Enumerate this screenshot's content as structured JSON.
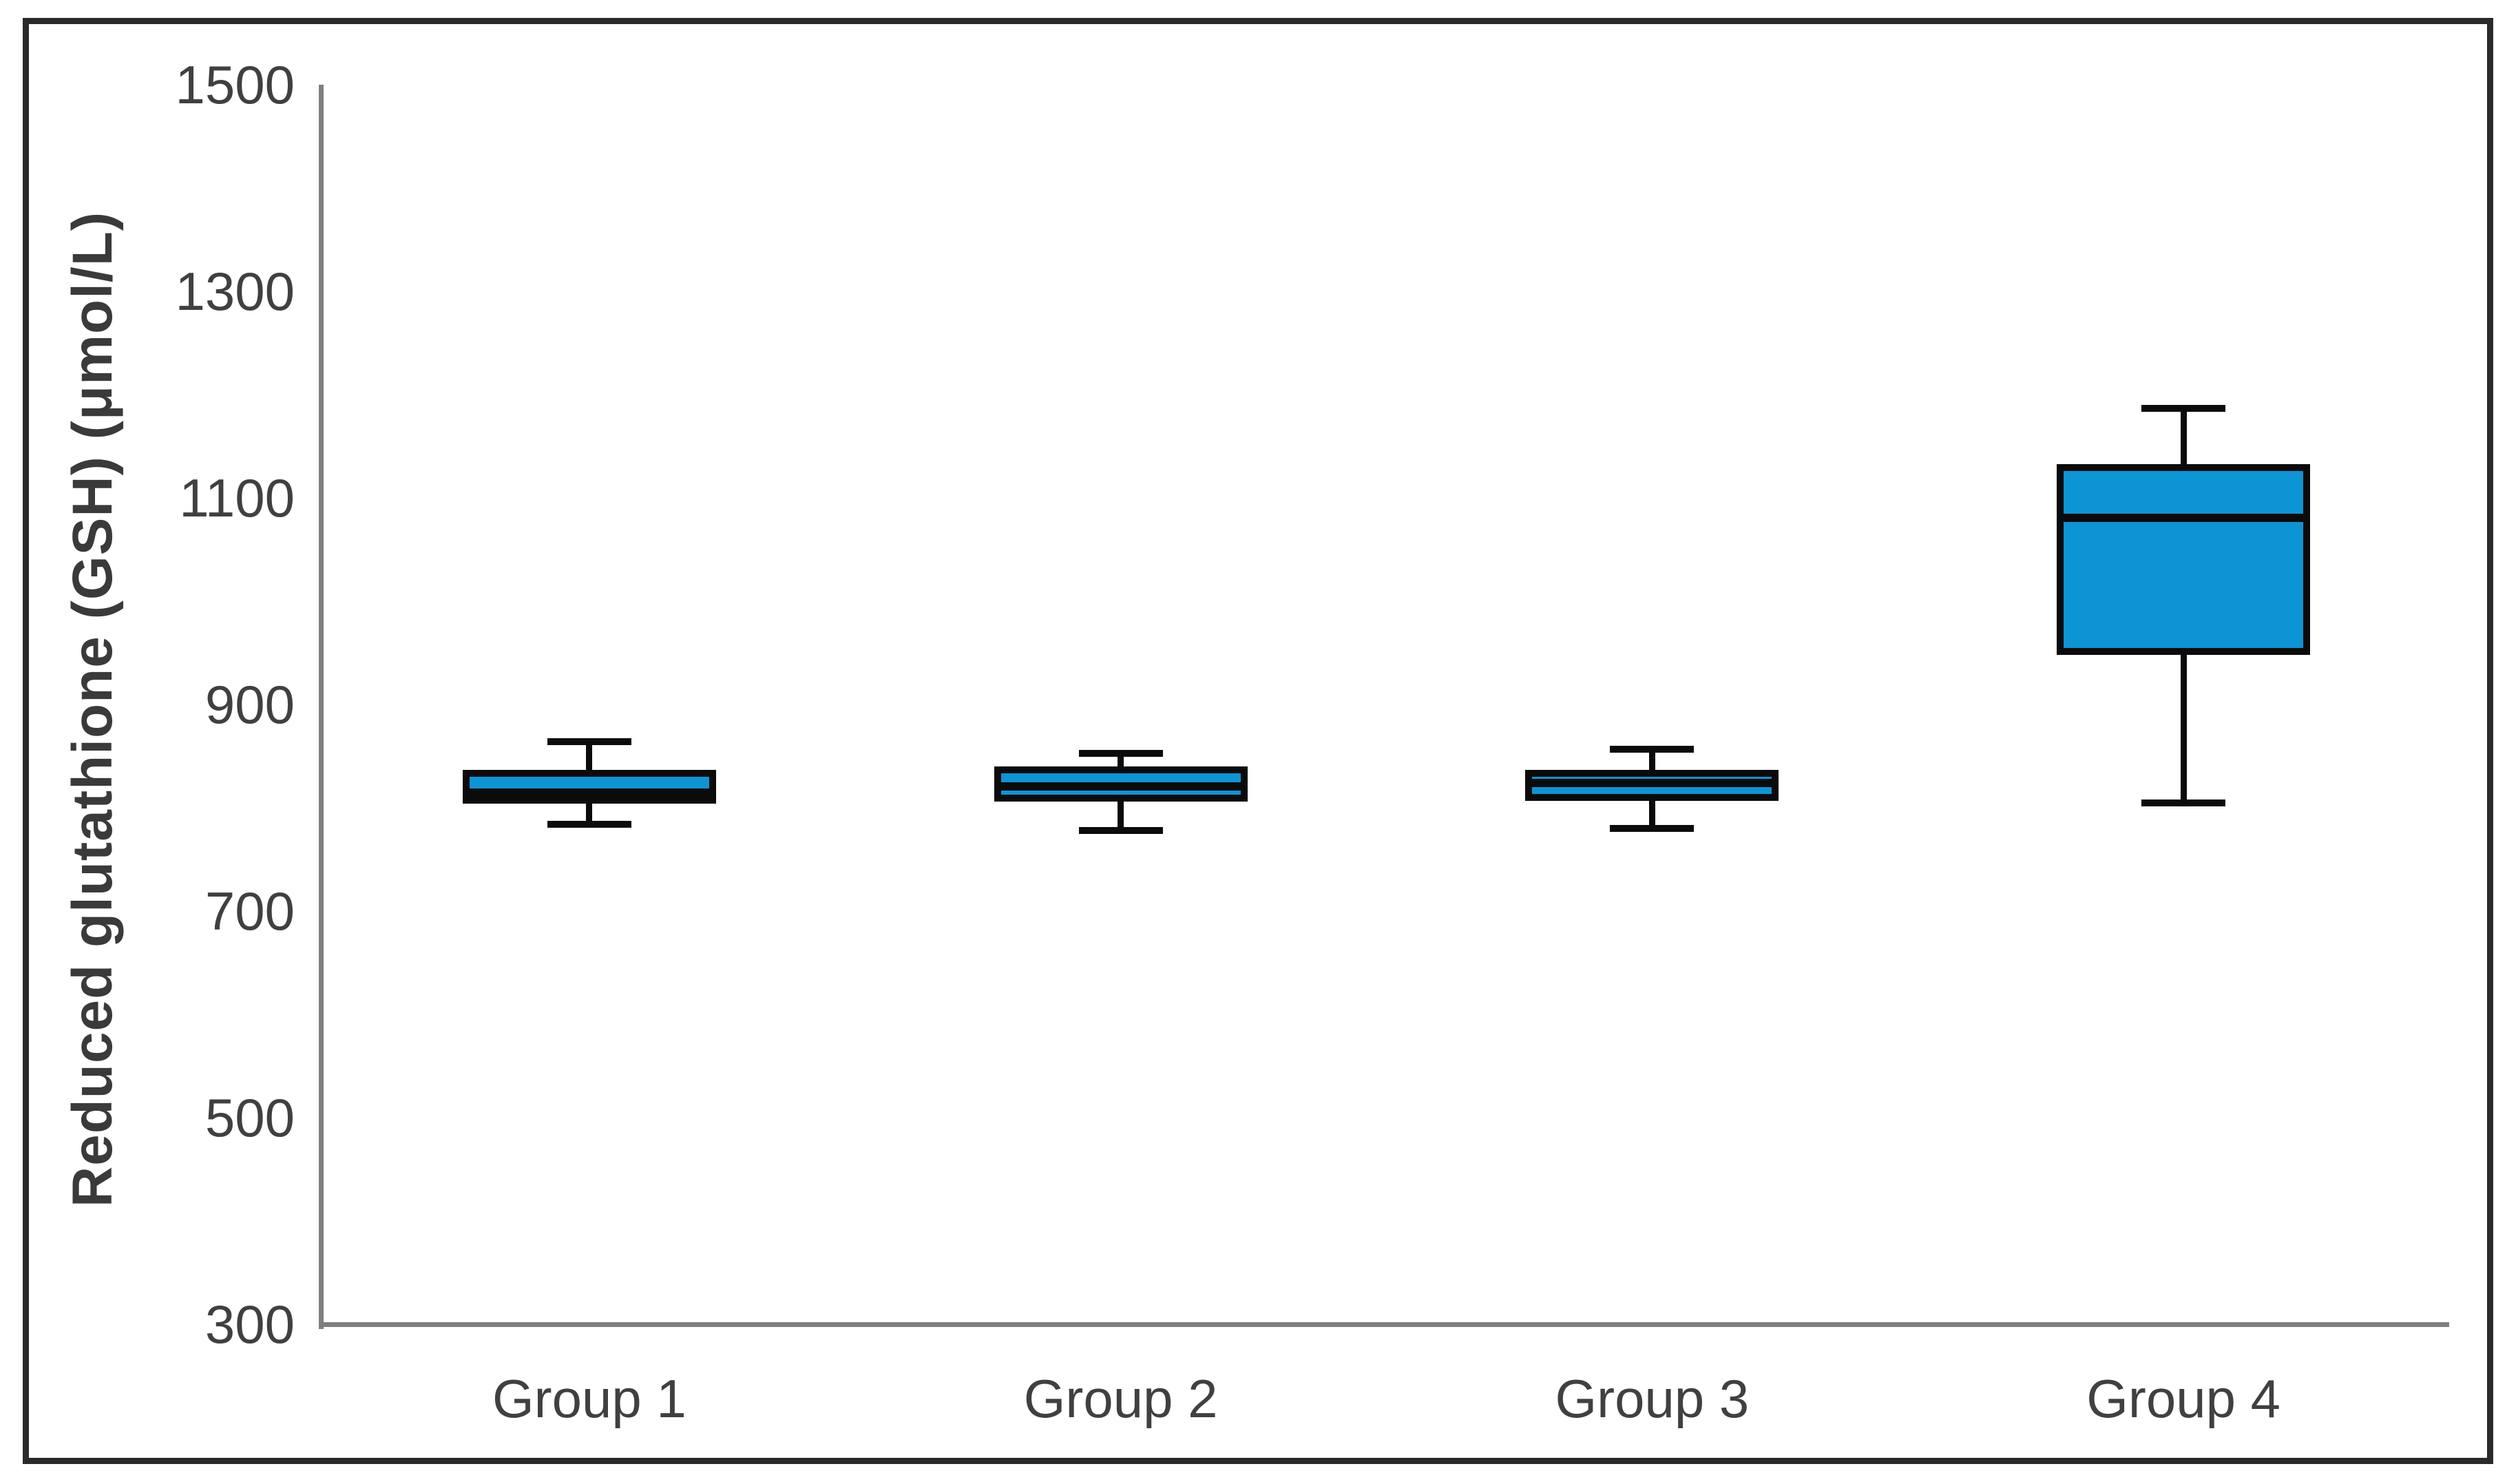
{
  "figure": {
    "background": "#ffffff",
    "frame_color": "#2a2a2a"
  },
  "chart_data": {
    "type": "box",
    "title": "",
    "xlabel": "",
    "ylabel": "Reduced glutathione (GSH) (μmol/L)",
    "ylim": [
      300,
      1500
    ],
    "yticks": [
      300,
      500,
      700,
      900,
      1100,
      1300,
      1500
    ],
    "categories": [
      "Group 1",
      "Group 2",
      "Group 3",
      "Group 4"
    ],
    "series": [
      {
        "name": "Group 1",
        "min": 784,
        "q1": 804,
        "median": 815,
        "q3": 837,
        "max": 864
      },
      {
        "name": "Group 2",
        "min": 778,
        "q1": 806,
        "median": 821,
        "q3": 840,
        "max": 853
      },
      {
        "name": "Group 3",
        "min": 780,
        "q1": 807,
        "median": 824,
        "q3": 837,
        "max": 857
      },
      {
        "name": "Group 4",
        "min": 805,
        "q1": 948,
        "median": 1081,
        "q3": 1133,
        "max": 1187
      }
    ],
    "legend": false,
    "grid": false,
    "box_fill_color": "#0d94d5",
    "box_stroke_color": "#0b0b0b",
    "axis_line_color": "#7f7f7f",
    "text_color": "#404040"
  }
}
